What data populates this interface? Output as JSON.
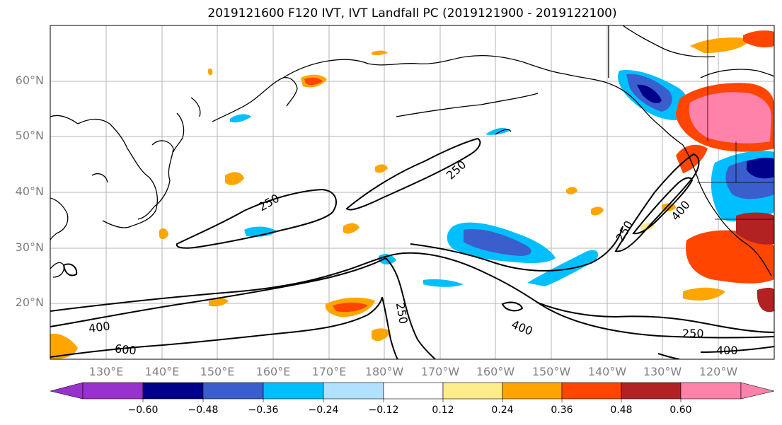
{
  "title": "2019121600 F120 IVT, IVT Landfall PC (2019121900 - 2019122100)",
  "lat_labels": [
    "60°N",
    "50°N",
    "40°N",
    "30°N",
    "20°N"
  ],
  "lon_labels": [
    "130°E",
    "140°E",
    "150°E",
    "160°E",
    "170°E",
    "180°W",
    "170°W",
    "160°W",
    "150°W",
    "140°W",
    "130°W",
    "120°W"
  ],
  "contour_labels": [
    "250",
    "250",
    "250",
    "250",
    "400",
    "400",
    "400",
    "400",
    "600",
    "250"
  ],
  "colorbar": {
    "ticks": [
      "−0.60",
      "−0.48",
      "−0.36",
      "−0.24",
      "−0.12",
      "0.12",
      "0.24",
      "0.36",
      "0.48",
      "0.60"
    ],
    "colors": [
      "#9932cc",
      "#00008b",
      "#3a5fcd",
      "#00bfff",
      "#b0e2ff",
      "#ffffff",
      "#ffec8b",
      "#ffa500",
      "#ff4500",
      "#b22222",
      "#ff82ab"
    ]
  }
}
